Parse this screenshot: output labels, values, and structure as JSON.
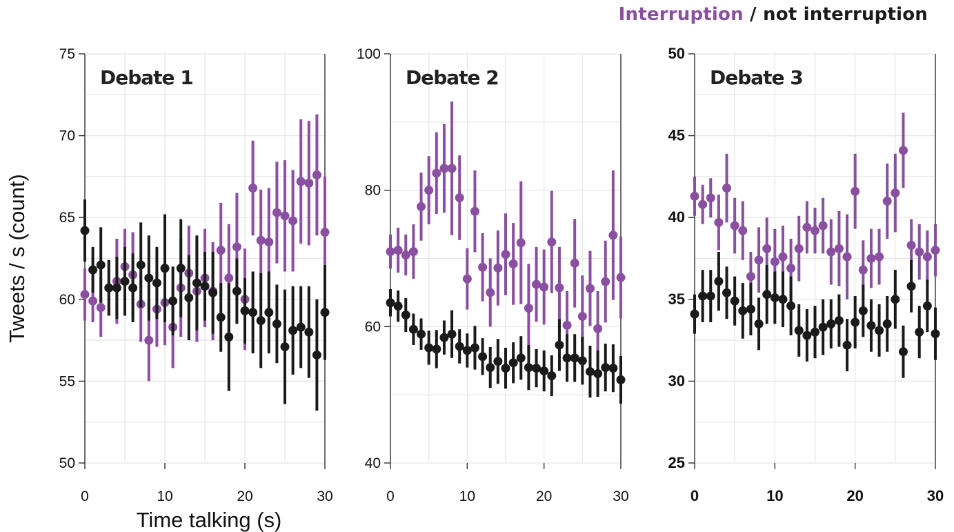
{
  "legend": {
    "interruption_label": "Interruption",
    "separator": " / ",
    "not_interruption_label": "not interruption",
    "interruption_color": "#8a4fa0",
    "not_interruption_color": "#1a1a1a"
  },
  "chart_data": [
    {
      "type": "scatter",
      "title": "Debate 1",
      "xlabel": "Time talking (s)",
      "ylabel": "Tweets / s (count)",
      "xlim": [
        0,
        30
      ],
      "ylim": [
        50,
        75
      ],
      "xticks": [
        0,
        10,
        20,
        30
      ],
      "yticks": [
        50,
        55,
        60,
        65,
        70,
        75
      ],
      "grid": true,
      "series": [
        {
          "name": "Interruption",
          "color": "#8a4fa0",
          "x": [
            0,
            1,
            2,
            3,
            4,
            5,
            6,
            7,
            8,
            9,
            10,
            11,
            12,
            13,
            14,
            15,
            16,
            17,
            18,
            19,
            20,
            21,
            22,
            23,
            24,
            25,
            26,
            27,
            28,
            29,
            30
          ],
          "y": [
            60.3,
            59.9,
            59.5,
            60.7,
            61.1,
            62.0,
            61.5,
            59.7,
            57.5,
            59.4,
            59.8,
            58.3,
            60.7,
            61.6,
            60.5,
            61.3,
            60.5,
            63.0,
            61.3,
            63.2,
            60.0,
            66.8,
            63.6,
            63.5,
            65.3,
            65.1,
            64.8,
            67.2,
            67.1,
            67.6,
            64.1
          ],
          "err": [
            1.6,
            1.3,
            1.8,
            1.7,
            2.6,
            2.3,
            2.6,
            2.3,
            2.5,
            2.3,
            2.6,
            2.5,
            3.0,
            2.9,
            3.1,
            3.0,
            3.0,
            2.9,
            3.3,
            3.3,
            3.1,
            2.9,
            3.1,
            3.3,
            3.1,
            3.4,
            3.1,
            3.8,
            3.8,
            3.7,
            3.4
          ]
        },
        {
          "name": "not interruption",
          "color": "#1a1a1a",
          "x": [
            0,
            1,
            2,
            3,
            4,
            5,
            6,
            7,
            8,
            9,
            10,
            11,
            12,
            13,
            14,
            15,
            16,
            17,
            18,
            19,
            20,
            21,
            22,
            23,
            24,
            25,
            26,
            27,
            28,
            29,
            30
          ],
          "y": [
            64.2,
            61.8,
            62.1,
            60.7,
            60.7,
            61.1,
            60.7,
            62.1,
            61.3,
            61.0,
            61.9,
            59.9,
            61.9,
            60.1,
            61.0,
            60.8,
            60.4,
            58.9,
            57.7,
            60.5,
            59.3,
            59.2,
            58.7,
            59.2,
            58.5,
            57.1,
            58.1,
            58.3,
            58.0,
            56.6,
            59.2
          ],
          "err": [
            1.9,
            1.4,
            2.3,
            1.7,
            1.9,
            2.1,
            2.1,
            2.6,
            2.6,
            2.2,
            3.3,
            2.1,
            3.0,
            2.6,
            2.9,
            2.1,
            2.5,
            2.1,
            3.3,
            2.0,
            2.0,
            2.5,
            2.9,
            2.5,
            2.4,
            3.5,
            2.7,
            2.5,
            2.8,
            3.4,
            2.9
          ]
        }
      ]
    },
    {
      "type": "scatter",
      "title": "Debate 2",
      "xlabel": "",
      "ylabel": "",
      "xlim": [
        0,
        30
      ],
      "ylim": [
        40,
        100
      ],
      "xticks": [
        0,
        10,
        20,
        30
      ],
      "yticks": [
        40,
        60,
        80,
        100
      ],
      "grid": true,
      "series": [
        {
          "name": "Interruption",
          "color": "#8a4fa0",
          "x": [
            0,
            1,
            2,
            3,
            4,
            5,
            6,
            7,
            8,
            9,
            10,
            11,
            12,
            13,
            14,
            15,
            16,
            17,
            18,
            19,
            20,
            21,
            22,
            23,
            24,
            25,
            26,
            27,
            28,
            29,
            30
          ],
          "y": [
            71.0,
            71.2,
            70.5,
            71.0,
            77.6,
            80.0,
            82.5,
            83.2,
            83.2,
            78.9,
            67.0,
            76.9,
            68.7,
            65.0,
            68.6,
            70.6,
            69.2,
            72.3,
            62.7,
            66.2,
            65.8,
            72.4,
            65.7,
            60.2,
            69.3,
            61.5,
            65.6,
            59.7,
            66.6,
            73.4,
            67.2
          ],
          "err": [
            2.5,
            3.3,
            3.0,
            4.0,
            5.0,
            5.0,
            6.0,
            6.5,
            9.8,
            6.2,
            4.5,
            6.0,
            5.0,
            5.0,
            5.5,
            6.0,
            6.0,
            9.0,
            6.5,
            5.5,
            5.5,
            7.5,
            6.0,
            5.0,
            6.5,
            6.0,
            5.5,
            5.5,
            6.0,
            9.5,
            6.0
          ]
        },
        {
          "name": "not interruption",
          "color": "#1a1a1a",
          "x": [
            0,
            1,
            2,
            3,
            4,
            5,
            6,
            7,
            8,
            9,
            10,
            11,
            12,
            13,
            14,
            15,
            16,
            17,
            18,
            19,
            20,
            21,
            22,
            23,
            24,
            25,
            26,
            27,
            28,
            29,
            30
          ],
          "y": [
            63.5,
            63.0,
            61.7,
            59.6,
            58.9,
            56.9,
            56.7,
            58.4,
            58.9,
            57.1,
            56.5,
            56.9,
            55.6,
            54.0,
            54.9,
            53.9,
            54.7,
            55.4,
            54.0,
            53.9,
            53.5,
            52.8,
            57.3,
            55.4,
            55.4,
            55.0,
            53.4,
            53.1,
            54.0,
            53.9,
            52.2
          ],
          "err": [
            2.0,
            2.3,
            2.5,
            2.3,
            2.3,
            2.5,
            2.8,
            2.5,
            3.5,
            2.5,
            2.5,
            3.2,
            2.7,
            3.0,
            3.3,
            3.0,
            3.0,
            3.2,
            3.3,
            2.8,
            3.0,
            3.0,
            3.8,
            3.5,
            3.5,
            3.5,
            3.8,
            3.4,
            3.5,
            3.5,
            3.5
          ]
        }
      ]
    },
    {
      "type": "scatter",
      "title": "Debate 3",
      "xlabel": "",
      "ylabel": "",
      "xlim": [
        0,
        30
      ],
      "ylim": [
        25,
        50
      ],
      "xticks": [
        0,
        10,
        20,
        30
      ],
      "yticks": [
        25,
        30,
        35,
        40,
        45,
        50
      ],
      "grid": true,
      "series": [
        {
          "name": "Interruption",
          "color": "#8a4fa0",
          "x": [
            0,
            1,
            2,
            3,
            4,
            5,
            6,
            7,
            8,
            9,
            10,
            11,
            12,
            13,
            14,
            15,
            16,
            17,
            18,
            19,
            20,
            21,
            22,
            23,
            24,
            25,
            26,
            27,
            28,
            29,
            30
          ],
          "y": [
            41.3,
            40.8,
            41.2,
            39.7,
            41.8,
            39.5,
            39.2,
            36.4,
            37.4,
            38.1,
            37.3,
            37.6,
            36.9,
            38.1,
            39.4,
            39.2,
            39.5,
            37.9,
            38.1,
            37.6,
            41.6,
            36.8,
            37.5,
            37.6,
            41.0,
            41.5,
            44.1,
            38.3,
            37.9,
            37.6,
            38.0
          ],
          "err": [
            1.2,
            1.2,
            1.2,
            1.7,
            2.1,
            1.7,
            1.8,
            1.5,
            2.0,
            1.9,
            2.0,
            1.9,
            1.8,
            2.0,
            1.6,
            1.4,
            1.7,
            2.0,
            2.3,
            2.6,
            2.3,
            1.8,
            1.8,
            1.7,
            2.3,
            2.4,
            2.3,
            1.6,
            1.7,
            1.6,
            1.6
          ]
        },
        {
          "name": "not interruption",
          "color": "#1a1a1a",
          "x": [
            0,
            1,
            2,
            3,
            4,
            5,
            6,
            7,
            8,
            9,
            10,
            11,
            12,
            13,
            14,
            15,
            16,
            17,
            18,
            19,
            20,
            21,
            22,
            23,
            24,
            25,
            26,
            27,
            28,
            29,
            30
          ],
          "y": [
            34.1,
            35.2,
            35.2,
            36.1,
            35.4,
            34.9,
            34.3,
            34.4,
            33.5,
            35.3,
            35.1,
            35.0,
            34.6,
            33.1,
            32.8,
            33.0,
            33.3,
            33.5,
            33.7,
            32.2,
            33.6,
            34.3,
            33.4,
            33.1,
            33.5,
            35.0,
            31.8,
            35.8,
            33.0,
            34.6,
            32.9
          ],
          "err": [
            1.2,
            1.6,
            1.6,
            1.8,
            1.6,
            1.5,
            1.7,
            1.6,
            1.6,
            1.8,
            1.6,
            1.7,
            1.8,
            1.6,
            1.6,
            1.6,
            1.7,
            1.5,
            1.6,
            1.6,
            1.6,
            1.6,
            1.6,
            1.6,
            1.7,
            1.8,
            1.6,
            1.6,
            1.6,
            1.6,
            1.6
          ]
        }
      ]
    }
  ]
}
